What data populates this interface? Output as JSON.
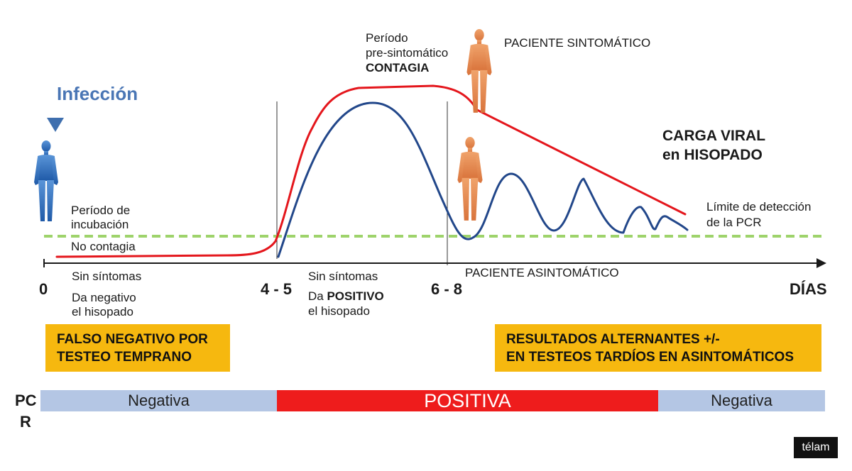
{
  "infection_label": "Infección",
  "pre_symptomatic": {
    "line1": "Período",
    "line2": "pre-sintomático",
    "line3": "CONTAGIA"
  },
  "symptomatic_label": "PACIENTE SINTOMÁTICO",
  "asymptomatic_label": "PACIENTE ASINTOMÁTICO",
  "viral_load": {
    "line1": "CARGA VIRAL",
    "line2": "en HISOPADO"
  },
  "detection_limit": {
    "line1": "Límite de detección",
    "line2": "de la PCR"
  },
  "incubation": {
    "line1": "Período de",
    "line2": "incubación",
    "line3": "No contagia"
  },
  "phase1": {
    "sin_sintomas": "Sin síntomas",
    "line1": "Da negativo",
    "line2": "el hisopado"
  },
  "phase2": {
    "sin_sintomas": "Sin síntomas",
    "da": "Da",
    "positivo": "POSITIVO",
    "line2": "el hisopado"
  },
  "axis": {
    "tick0": "0",
    "tick1": "4 - 5",
    "tick2": "6 - 8",
    "unit": "DÍAS"
  },
  "box_left": {
    "line1": "FALSO NEGATIVO POR",
    "line2": "TESTEO TEMPRANO"
  },
  "box_right": {
    "line1": "RESULTADOS ALTERNANTES +/-",
    "line2": "EN TESTEOS TARDÍOS EN ASINTOMÁTICOS"
  },
  "pcr": {
    "label_line1": "PC",
    "label_line2": "R",
    "segments": [
      "Negativa",
      "POSITIVA",
      "Negativa"
    ]
  },
  "brand": "télam",
  "colors": {
    "red_curve": "#e4161c",
    "blue_curve": "#22478a",
    "detection_line": "#9ed36b",
    "infection_blue": "#4a76b5",
    "box_yellow": "#f6b80f",
    "pcr_negative": "#b4c6e4",
    "pcr_positive": "#ee1c1c",
    "figure_blue": "#3b79c3",
    "figure_orange": "#e9915a"
  }
}
